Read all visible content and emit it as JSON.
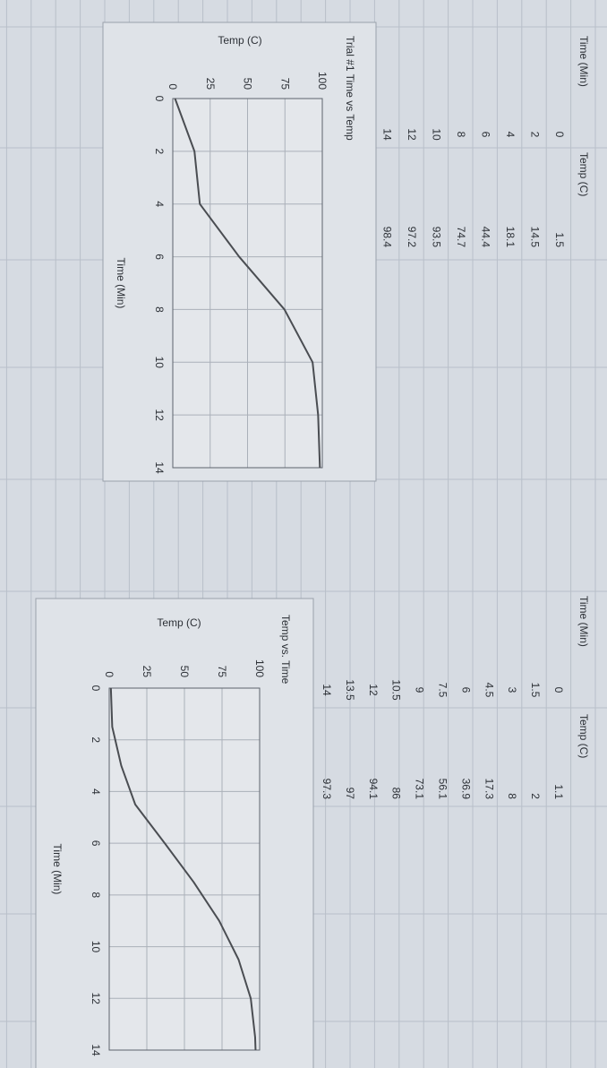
{
  "tables": [
    {
      "header": [
        "Time (Min)",
        "Temp (C)"
      ],
      "rows": [
        [
          0,
          1.5
        ],
        [
          2,
          14.5
        ],
        [
          4,
          18.1
        ],
        [
          6,
          44.4
        ],
        [
          8,
          74.7
        ],
        [
          10,
          93.5
        ],
        [
          12,
          97.2
        ],
        [
          14,
          98.4
        ]
      ]
    },
    {
      "header": [
        "Time (Min)",
        "Temp (C)"
      ],
      "rows": [
        [
          0,
          1.1
        ],
        [
          1.5,
          2
        ],
        [
          3,
          8
        ],
        [
          4.5,
          17.3
        ],
        [
          6,
          36.9
        ],
        [
          7.5,
          56.1
        ],
        [
          9,
          73.1
        ],
        [
          10.5,
          86
        ],
        [
          12,
          94.1
        ],
        [
          13.5,
          97
        ],
        [
          14,
          97.3
        ]
      ]
    }
  ],
  "chart_data": [
    {
      "type": "line",
      "title": "Trial #1 Time vs Temp",
      "x_label": "Time (Min)",
      "y_label": "Temp (C)",
      "x": [
        0,
        2,
        4,
        6,
        8,
        10,
        12,
        14
      ],
      "values": [
        1.5,
        14.5,
        18.1,
        44.4,
        74.7,
        93.5,
        97.2,
        98.4
      ],
      "color": "#4a4d52",
      "xlim": [
        0,
        14
      ],
      "xticks": [
        0,
        2,
        4,
        6,
        8,
        10,
        12,
        14
      ],
      "ylim": [
        0,
        100
      ],
      "yticks": [
        0,
        25,
        50,
        75,
        100
      ],
      "grid": true
    },
    {
      "type": "line",
      "title": "Temp vs. Time",
      "x_label": "Time (Min)",
      "y_label": "Temp (C)",
      "x": [
        0,
        1.5,
        3,
        4.5,
        6,
        7.5,
        9,
        10.5,
        12,
        13.5,
        14
      ],
      "values": [
        1.1,
        2,
        8,
        17.3,
        36.9,
        56.1,
        73.1,
        86,
        94.1,
        97,
        97.3
      ],
      "color": "#4a4d52",
      "xlim": [
        0,
        14
      ],
      "xticks": [
        0,
        2,
        4,
        6,
        8,
        10,
        12,
        14
      ],
      "ylim": [
        0,
        100
      ],
      "yticks": [
        0,
        25,
        50,
        75,
        100
      ],
      "grid": true
    }
  ]
}
